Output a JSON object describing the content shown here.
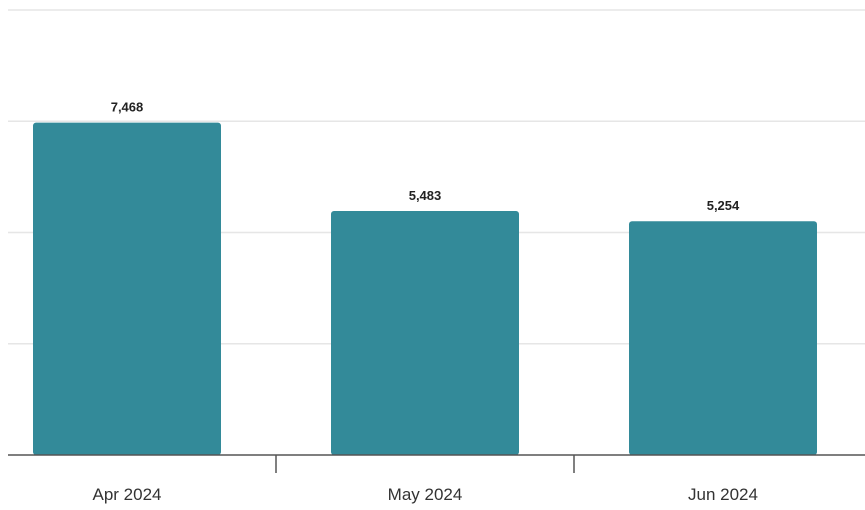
{
  "chart_data": {
    "type": "bar",
    "categories": [
      "Apr 2024",
      "May 2024",
      "Jun 2024"
    ],
    "values": [
      7468,
      5483,
      5254
    ],
    "data_labels": [
      "7,468",
      "5,483",
      "5,254"
    ],
    "ylim": [
      0,
      10000
    ],
    "grid": true,
    "legend": "none",
    "title": "",
    "xlabel": "",
    "ylabel": "",
    "colors": {
      "bar": "#338a99",
      "grid": "#e6e6e6",
      "axis": "#555555"
    }
  }
}
